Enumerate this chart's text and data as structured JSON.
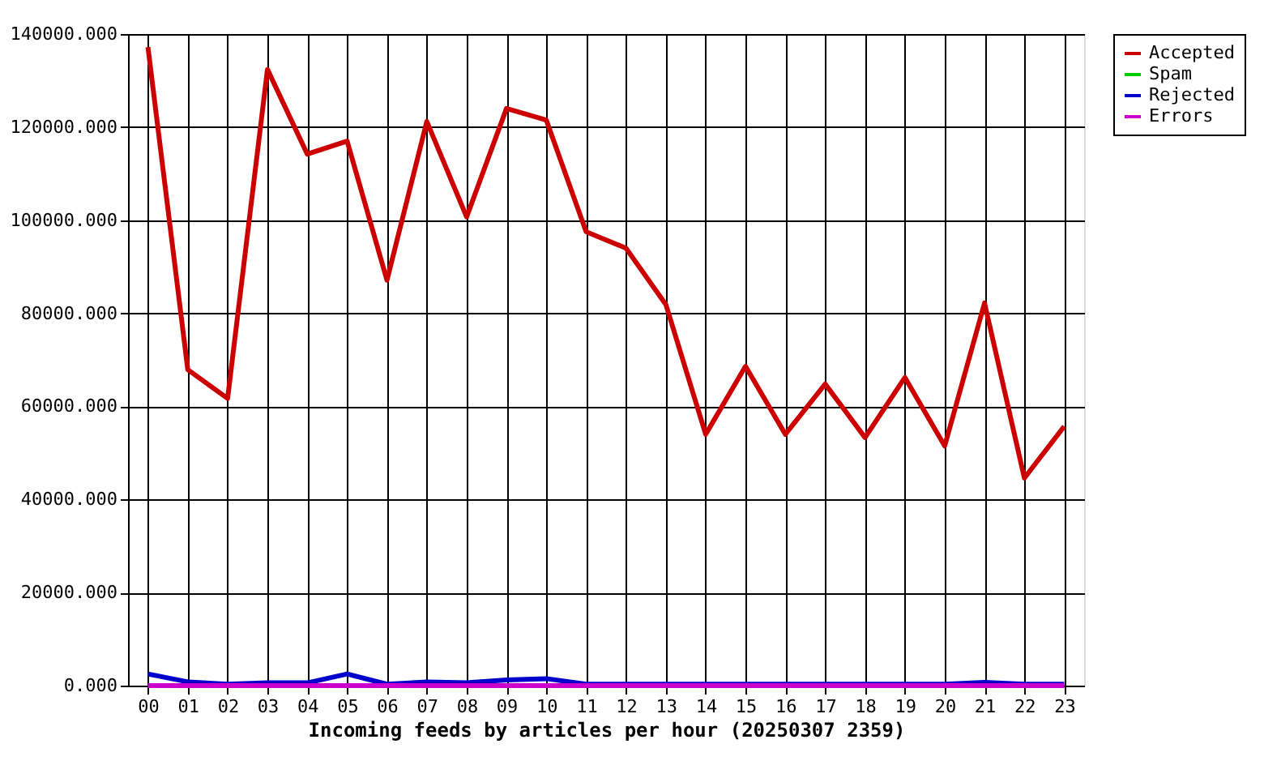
{
  "chart_data": {
    "type": "line",
    "xlabel": "Incoming feeds by articles per hour (20250307 2359)",
    "categories": [
      "00",
      "01",
      "02",
      "03",
      "04",
      "05",
      "06",
      "07",
      "08",
      "09",
      "10",
      "11",
      "12",
      "13",
      "14",
      "15",
      "16",
      "17",
      "18",
      "19",
      "20",
      "21",
      "22",
      "23"
    ],
    "series": [
      {
        "name": "Accepted",
        "color": "#cc0000",
        "values": [
          137200,
          67900,
          61700,
          132400,
          114200,
          117000,
          87100,
          121200,
          100700,
          124000,
          121500,
          97500,
          94000,
          81900,
          54000,
          68600,
          54000,
          64800,
          53300,
          66200,
          51500,
          82200,
          44600,
          55700
        ]
      },
      {
        "name": "Spam",
        "color": "#00cc00",
        "values": [
          null,
          null,
          null,
          null,
          null,
          null,
          null,
          null,
          null,
          null,
          null,
          null,
          null,
          null,
          null,
          null,
          null,
          null,
          null,
          null,
          null,
          null,
          null,
          null
        ]
      },
      {
        "name": "Rejected",
        "color": "#0000cc",
        "values": [
          2500,
          800,
          300,
          600,
          600,
          2500,
          300,
          800,
          600,
          1200,
          1500,
          300,
          300,
          300,
          300,
          300,
          300,
          300,
          300,
          300,
          300,
          700,
          300,
          300
        ]
      },
      {
        "name": "Errors",
        "color": "#cc00cc",
        "values": [
          0,
          0,
          0,
          0,
          0,
          0,
          0,
          0,
          0,
          0,
          0,
          0,
          0,
          0,
          0,
          0,
          0,
          0,
          0,
          0,
          0,
          0,
          0,
          0
        ]
      }
    ],
    "ylim": [
      0,
      140000
    ],
    "yticks": [
      {
        "value": 0,
        "label": "0.000"
      },
      {
        "value": 20000,
        "label": "20000.000"
      },
      {
        "value": 40000,
        "label": "40000.000"
      },
      {
        "value": 60000,
        "label": "60000.000"
      },
      {
        "value": 80000,
        "label": "80000.000"
      },
      {
        "value": 100000,
        "label": "100000.000"
      },
      {
        "value": 120000,
        "label": "120000.000"
      },
      {
        "value": 140000,
        "label": "140000.000"
      }
    ],
    "grid": true,
    "legend": "top right",
    "marker": "none",
    "line_style": "solid"
  }
}
